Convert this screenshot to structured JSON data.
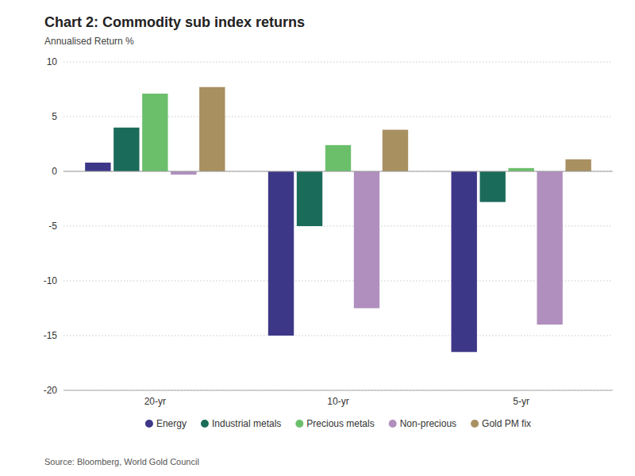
{
  "chart_data": {
    "type": "bar",
    "title": "Chart 2: Commodity sub index returns",
    "subtitle": "Annualised Return %",
    "annotations": [
      "Source: Bloomberg, World Gold Council"
    ],
    "categories": [
      "20-yr",
      "10-yr",
      "5-yr"
    ],
    "series": [
      {
        "name": "Energy",
        "color": "#3d3788",
        "values": [
          0.8,
          -15.0,
          -16.5
        ]
      },
      {
        "name": "Industrial metals",
        "color": "#1a6b5a",
        "values": [
          4.0,
          -5.0,
          -2.8
        ]
      },
      {
        "name": "Precious metals",
        "color": "#6bbf6b",
        "values": [
          7.1,
          2.4,
          0.3
        ]
      },
      {
        "name": "Non-precious",
        "color": "#b08fbe",
        "values": [
          -0.3,
          -12.5,
          -14.0
        ]
      },
      {
        "name": "Gold PM fix",
        "color": "#a89060",
        "values": [
          7.7,
          3.8,
          1.1
        ]
      }
    ],
    "ylim": [
      -20,
      10
    ],
    "yticks": [
      -20,
      -15,
      -10,
      -5,
      0,
      5,
      10
    ],
    "grid": true,
    "legend": "bottom"
  }
}
